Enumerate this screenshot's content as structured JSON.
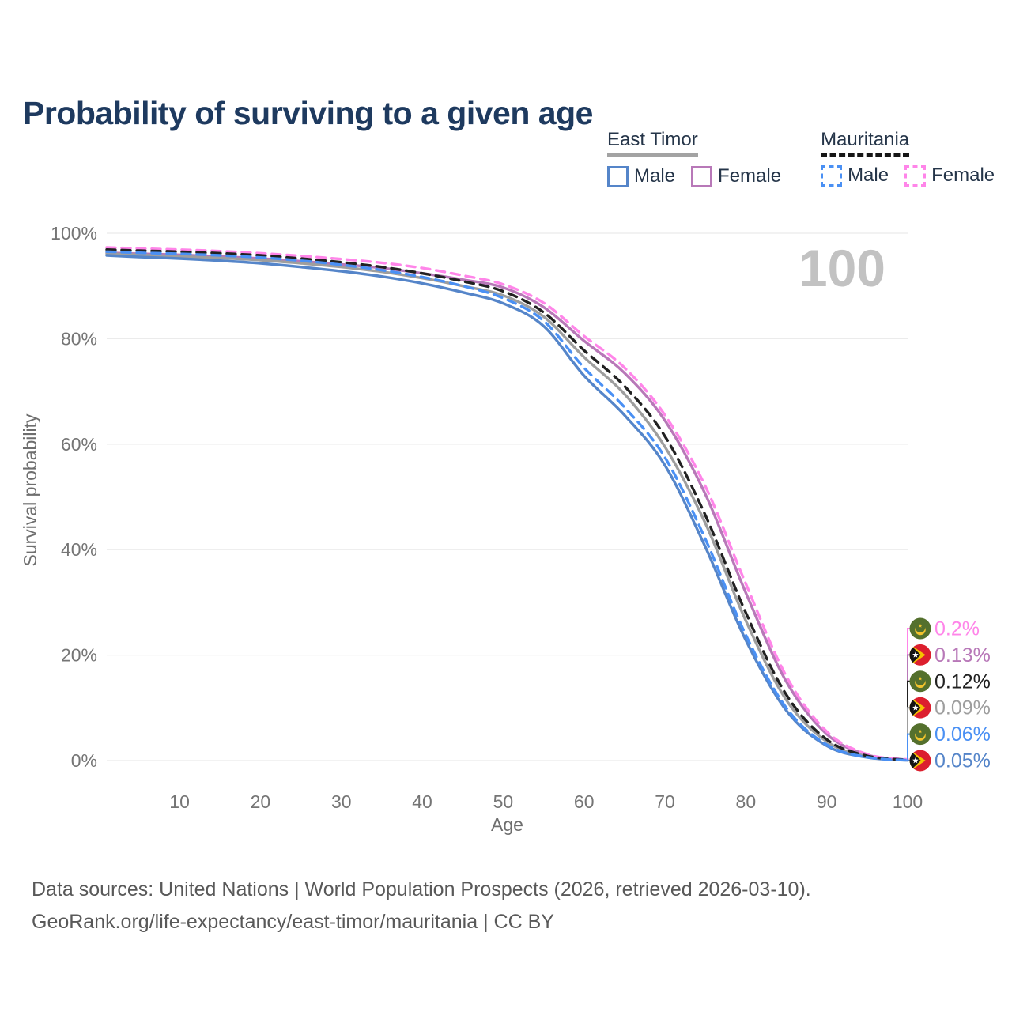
{
  "header": {
    "title": "Probability of surviving to a given age"
  },
  "legend": {
    "groups": [
      {
        "country": "East Timor",
        "line_style": "solid",
        "underline_color": "#a3a3a3",
        "items": [
          {
            "label": "Male",
            "color": "#5585c9"
          },
          {
            "label": "Female",
            "color": "#b878b8"
          }
        ]
      },
      {
        "country": "Mauritania",
        "line_style": "dashed",
        "underline_color": "#161616",
        "items": [
          {
            "label": "Male",
            "color": "#4a90f4"
          },
          {
            "label": "Female",
            "color": "#ff85e9"
          }
        ]
      }
    ]
  },
  "watermark": "100",
  "chart_data": {
    "type": "line",
    "title": "Probability of surviving to a given age",
    "xlabel": "Age",
    "ylabel": "Survival probability",
    "xlim": [
      1,
      100
    ],
    "ylim": [
      0,
      100
    ],
    "grid": "horizontal",
    "legend_position": "top-right",
    "xticks": [
      10,
      20,
      30,
      40,
      50,
      60,
      70,
      80,
      90,
      100
    ],
    "yticks": [
      {
        "value": 0,
        "label": "0%"
      },
      {
        "value": 20,
        "label": "20%"
      },
      {
        "value": 40,
        "label": "40%"
      },
      {
        "value": 60,
        "label": "60%"
      },
      {
        "value": 80,
        "label": "80%"
      },
      {
        "value": 100,
        "label": "100%"
      }
    ],
    "x": [
      1,
      5,
      10,
      15,
      20,
      25,
      30,
      35,
      40,
      45,
      50,
      55,
      60,
      65,
      70,
      75,
      80,
      85,
      90,
      95,
      100
    ],
    "series": [
      {
        "name": "Mauritania Female",
        "country": "Mauritania",
        "sex": "Female",
        "flag": "mauritania",
        "color": "#ff85e9",
        "dashed": true,
        "end_label": "0.2%",
        "values": [
          97.3,
          97.1,
          96.9,
          96.6,
          96.2,
          95.7,
          95.1,
          94.4,
          93.4,
          92.0,
          90.3,
          86.8,
          80.5,
          74.5,
          65.5,
          52.0,
          33.5,
          16.0,
          5.5,
          1.2,
          0.2
        ]
      },
      {
        "name": "East Timor Female",
        "country": "East Timor",
        "sex": "Female",
        "flag": "east-timor",
        "color": "#b878b8",
        "dashed": false,
        "end_label": "0.13%",
        "values": [
          96.3,
          96.1,
          95.9,
          95.6,
          95.2,
          94.7,
          94.1,
          93.4,
          92.4,
          91.2,
          89.7,
          86.0,
          79.6,
          73.5,
          64.5,
          50.5,
          31.8,
          15.0,
          5.0,
          1.1,
          0.13
        ]
      },
      {
        "name": "Mauritania Total",
        "country": "Mauritania",
        "sex": "Total",
        "flag": "mauritania",
        "color": "#212121",
        "dashed": true,
        "end_label": "0.12%",
        "values": [
          96.9,
          96.7,
          96.5,
          96.2,
          95.8,
          95.2,
          94.5,
          93.6,
          92.4,
          90.9,
          89.0,
          85.0,
          77.8,
          71.0,
          61.5,
          46.5,
          28.0,
          12.5,
          4.0,
          0.9,
          0.12
        ]
      },
      {
        "name": "East Timor Total",
        "country": "East Timor",
        "sex": "Total",
        "flag": "east-timor",
        "color": "#9e9e9e",
        "dashed": false,
        "end_label": "0.09%",
        "values": [
          96.1,
          95.9,
          95.6,
          95.3,
          94.9,
          94.3,
          93.6,
          92.7,
          91.5,
          90.0,
          88.2,
          84.2,
          76.5,
          69.5,
          59.5,
          45.0,
          26.5,
          11.5,
          3.6,
          0.8,
          0.09
        ]
      },
      {
        "name": "Mauritania Male",
        "country": "Mauritania",
        "sex": "Male",
        "flag": "mauritania",
        "color": "#4a90f4",
        "dashed": true,
        "end_label": "0.06%",
        "values": [
          96.5,
          96.3,
          96.1,
          95.8,
          95.4,
          94.8,
          94.0,
          93.0,
          91.7,
          90.0,
          87.7,
          83.4,
          74.5,
          67.0,
          57.5,
          42.0,
          23.8,
          10.0,
          3.0,
          0.65,
          0.06
        ]
      },
      {
        "name": "East Timor Male",
        "country": "East Timor",
        "sex": "Male",
        "flag": "east-timor",
        "color": "#5585c9",
        "dashed": false,
        "end_label": "0.05%",
        "values": [
          95.8,
          95.5,
          95.2,
          94.8,
          94.3,
          93.6,
          92.8,
          91.8,
          90.5,
          88.8,
          86.7,
          82.4,
          73.0,
          65.5,
          56.0,
          40.5,
          22.8,
          9.5,
          2.8,
          0.6,
          0.05
        ]
      }
    ],
    "flag_colors": {
      "mauritania": {
        "field": "#54702d",
        "crescent": "#f2c32c"
      },
      "east_timor": {
        "field": "#dc1f2e",
        "chevron": "#f5c400",
        "triangle": "#141414",
        "star": "#ffffff"
      }
    }
  },
  "footer": {
    "line1": "Data sources: United Nations | World Population Prospects (2026, retrieved 2026-03-10).",
    "line2": "GeoRank.org/life-expectancy/east-timor/mauritania | CC BY"
  }
}
